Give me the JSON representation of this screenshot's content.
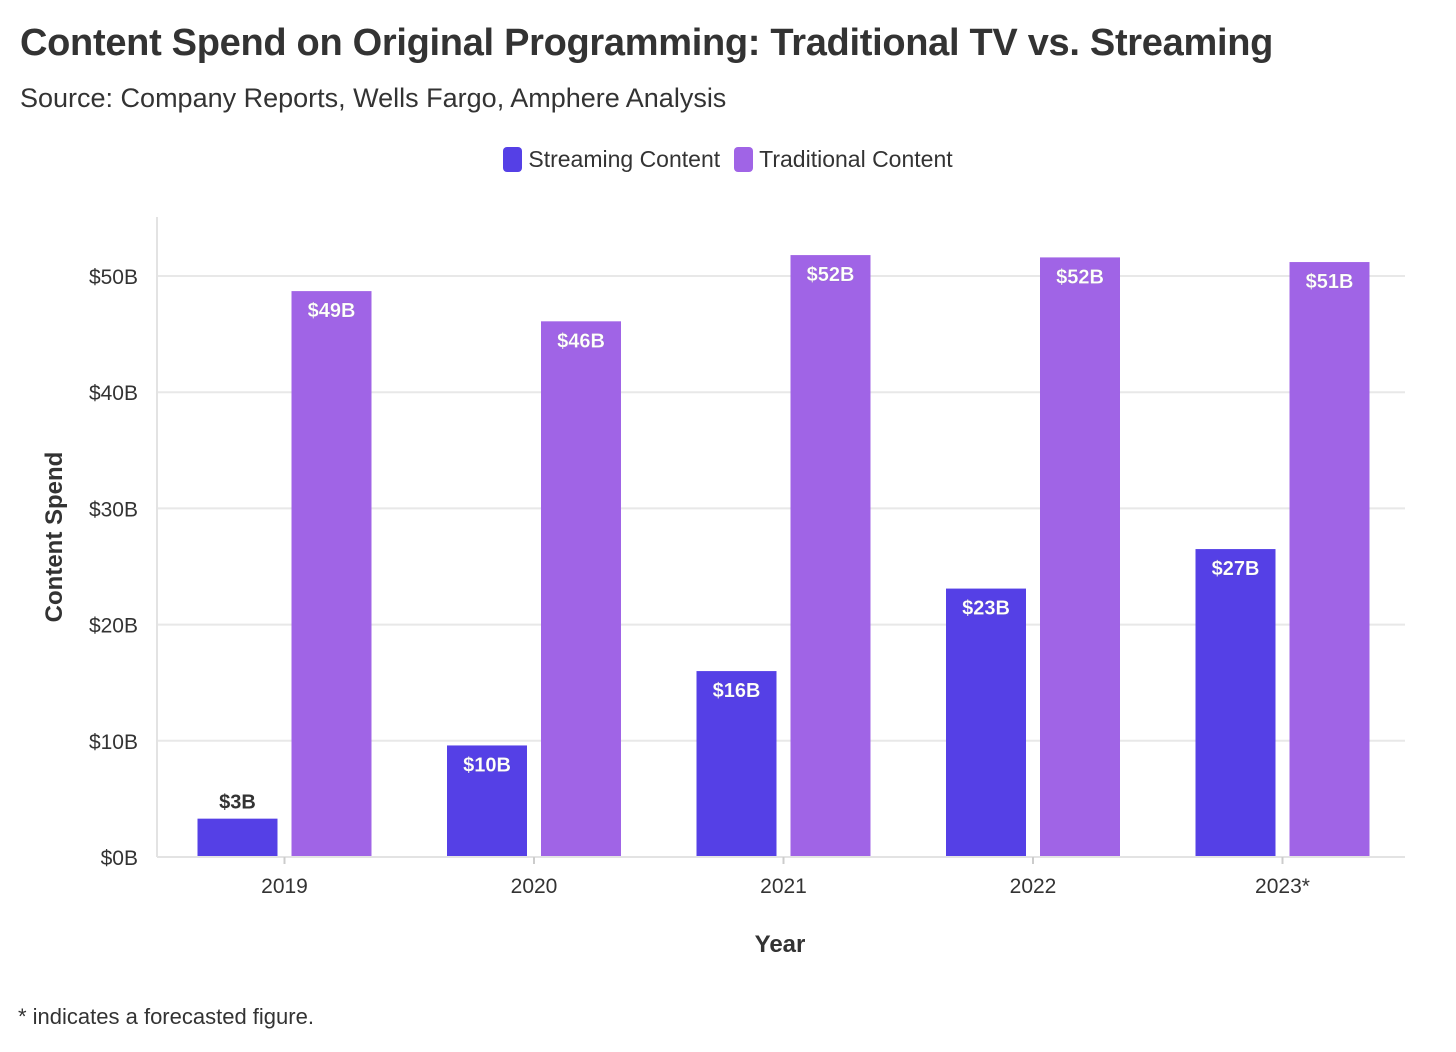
{
  "chart_data": {
    "type": "bar",
    "title": "Content Spend on Original Programming: Traditional TV vs. Streaming",
    "subtitle": "Source: Company Reports, Wells Fargo, Amphere Analysis",
    "xlabel": "Year",
    "ylabel": "Content Spend",
    "categories": [
      "2019",
      "2020",
      "2021",
      "2022",
      "2023*"
    ],
    "series": [
      {
        "name": "Streaming Content",
        "color": "#5540e6",
        "values": [
          3.3,
          9.6,
          16.0,
          23.1,
          26.5
        ],
        "labels": [
          "$3B",
          "$10B",
          "$16B",
          "$23B",
          "$27B"
        ]
      },
      {
        "name": "Traditional Content",
        "color": "#a064e6",
        "values": [
          48.7,
          46.1,
          51.8,
          51.6,
          51.2
        ],
        "labels": [
          "$49B",
          "$46B",
          "$52B",
          "$52B",
          "$51B"
        ]
      }
    ],
    "ylim": [
      0,
      55
    ],
    "yticks": [
      0,
      10,
      20,
      30,
      40,
      50
    ],
    "ytick_labels": [
      "$0B",
      "$10B",
      "$20B",
      "$30B",
      "$40B",
      "$50B"
    ],
    "grid": true,
    "legend_position": "top-center",
    "footnote": "* indicates a forecasted figure."
  }
}
